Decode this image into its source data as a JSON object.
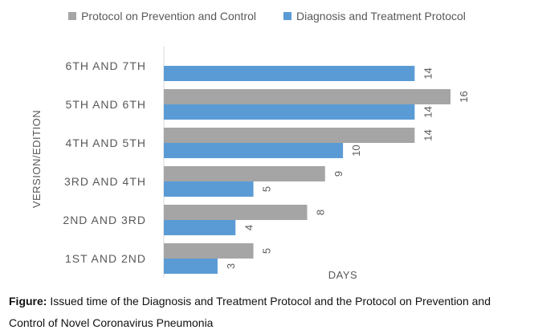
{
  "chart_data": {
    "type": "bar",
    "orientation": "horizontal",
    "categories": [
      "1ST AND 2ND",
      "2ND AND 3RD",
      "3RD AND 4TH",
      "4TH AND 5TH",
      "5TH AND 6TH",
      "6TH AND 7TH"
    ],
    "series": [
      {
        "name": "Protocol on Prevention and Control",
        "color": "#a5a5a5",
        "values": [
          5,
          8,
          9,
          14,
          16,
          null
        ]
      },
      {
        "name": "Diagnosis and Treatment Protocol",
        "color": "#5b9bd5",
        "values": [
          3,
          4,
          5,
          10,
          14,
          14
        ]
      }
    ],
    "xlabel": "DAYS",
    "ylabel": "VERSION/EDITION",
    "xlim": [
      0,
      16
    ],
    "grid": false,
    "legend_position": "top"
  },
  "caption": {
    "label": "Figure:",
    "text": " Issued time of the Diagnosis and Treatment Protocol and the Protocol on Prevention and Control of Novel Coronavirus Pneumonia"
  }
}
